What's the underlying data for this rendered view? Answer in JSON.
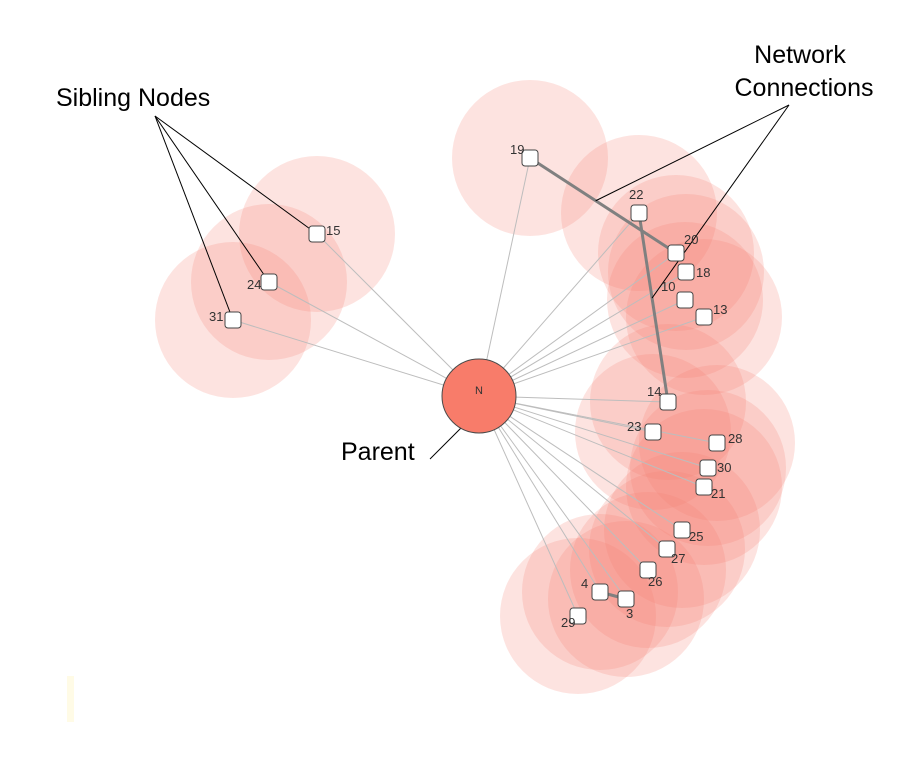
{
  "annotations": {
    "sibling_nodes": "Sibling Nodes",
    "network_connections_line1": "Network",
    "network_connections_line2": "Connections",
    "parent": "Parent"
  },
  "parent_node": {
    "label": "N"
  },
  "nodes": [
    {
      "id": "19"
    },
    {
      "id": "22"
    },
    {
      "id": "20"
    },
    {
      "id": "18"
    },
    {
      "id": "10"
    },
    {
      "id": "13"
    },
    {
      "id": "14"
    },
    {
      "id": "23"
    },
    {
      "id": "28"
    },
    {
      "id": "30"
    },
    {
      "id": "21"
    },
    {
      "id": "25"
    },
    {
      "id": "27"
    },
    {
      "id": "26"
    },
    {
      "id": "4"
    },
    {
      "id": "3"
    },
    {
      "id": "29"
    },
    {
      "id": "15"
    },
    {
      "id": "24"
    },
    {
      "id": "31"
    }
  ],
  "network_edges": [
    [
      "19",
      "20"
    ],
    [
      "22",
      "14"
    ],
    [
      "4",
      "3"
    ]
  ],
  "sibling_annotated_nodes": [
    "15",
    "24",
    "31"
  ],
  "network_annotated_edges": [
    [
      "19",
      "20"
    ],
    [
      "22",
      "14"
    ]
  ],
  "colors": {
    "parent_fill": "#f87c6a",
    "halo_fill": "#f88070",
    "node_fill": "#ffffff",
    "edge_parent": "#bdbdbd",
    "edge_network": "#808080",
    "label": "#333333"
  }
}
